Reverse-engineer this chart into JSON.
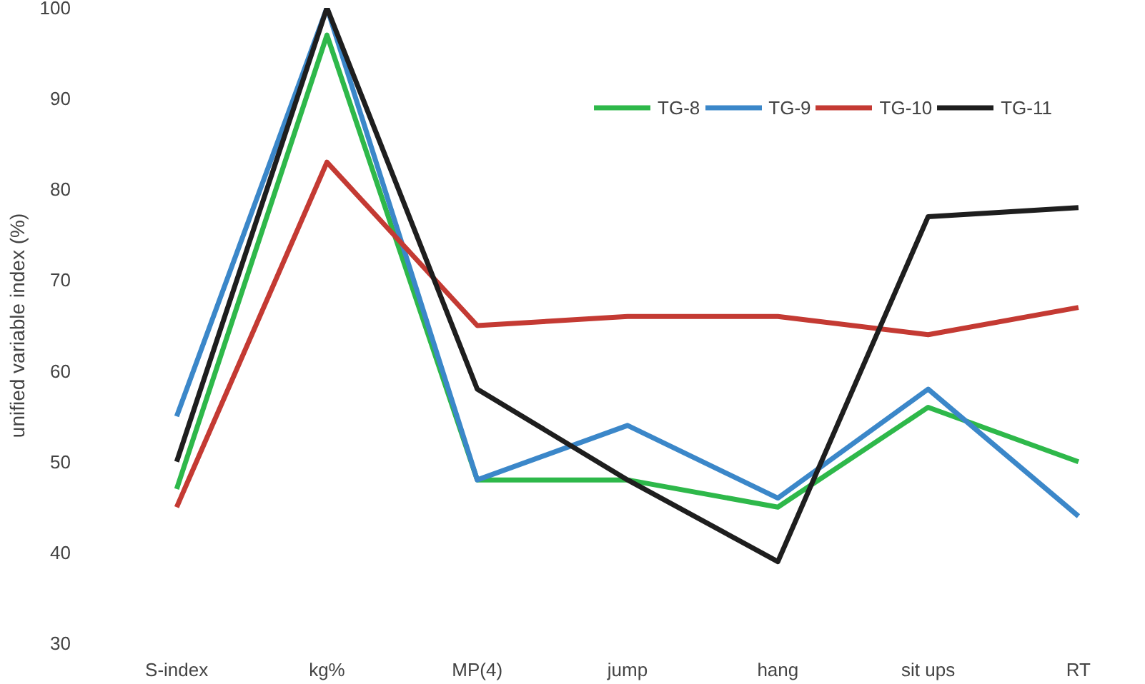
{
  "chart_data": {
    "type": "line",
    "ylabel": "unified variable index (%)",
    "categories": [
      "S-index",
      "kg%",
      "MP(4)",
      "jump",
      "hang",
      "sit ups",
      "RT"
    ],
    "series": [
      {
        "name": "TG-8",
        "color": "#2eb84a",
        "values": [
          47,
          97,
          48,
          48,
          45,
          56,
          50
        ]
      },
      {
        "name": "TG-9",
        "color": "#3b87c9",
        "values": [
          55,
          100,
          48,
          54,
          46,
          58,
          44
        ]
      },
      {
        "name": "TG-10",
        "color": "#c43a33",
        "values": [
          45,
          83,
          65,
          66,
          66,
          64,
          67
        ]
      },
      {
        "name": "TG-11",
        "color": "#1e1e1e",
        "values": [
          50,
          100,
          58,
          48,
          39,
          77,
          78
        ]
      }
    ],
    "ylim": [
      30,
      100
    ],
    "yticks": [
      30,
      40,
      50,
      60,
      70,
      80,
      90,
      100
    ],
    "grid": false,
    "legend": "top right",
    "marker": "none",
    "line_style": "solid"
  }
}
